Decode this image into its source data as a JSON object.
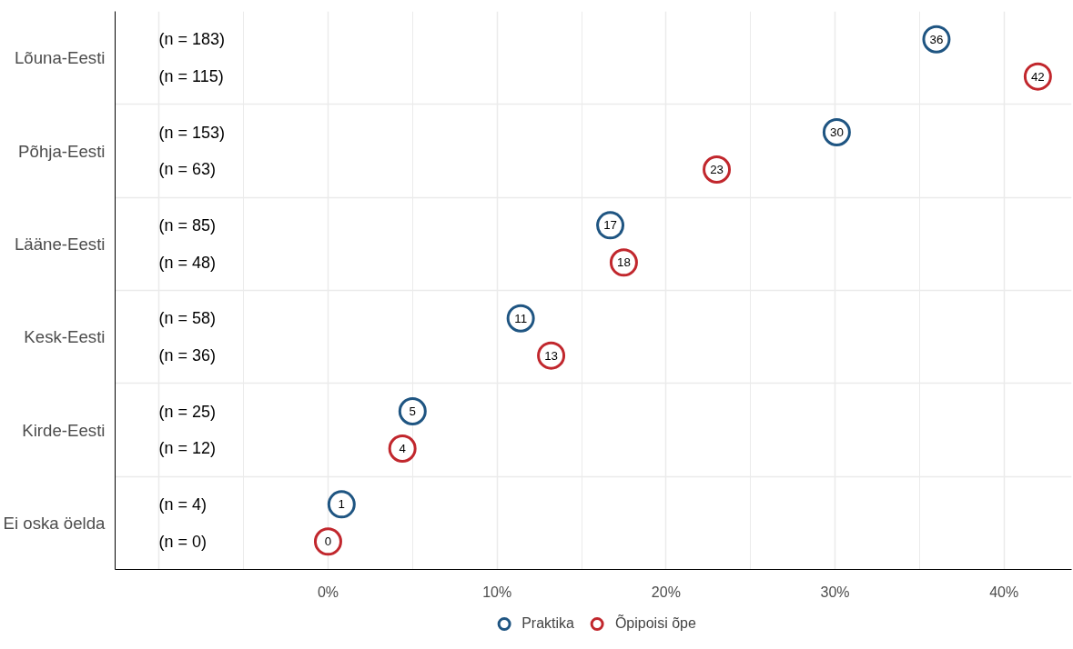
{
  "chart_data": {
    "type": "scatter",
    "categories": [
      "Lõuna-Eesti",
      "Põhja-Eesti",
      "Lääne-Eesti",
      "Kesk-Eesti",
      "Kirde-Eesti",
      "Ei oska öelda"
    ],
    "orientation": "horizontal",
    "marker": "circle",
    "grid": true,
    "legend": "bottom",
    "xlim": [
      -12.6,
      44
    ],
    "xticks": [
      {
        "value": -10,
        "label": null
      },
      {
        "value": 0,
        "label": "0%"
      },
      {
        "value": 10,
        "label": "10%"
      },
      {
        "value": 20,
        "label": "20%"
      },
      {
        "value": 30,
        "label": "30%"
      },
      {
        "value": 40,
        "label": "40%"
      }
    ],
    "series": [
      {
        "name": "Praktika",
        "color": "#1f5582",
        "values": [
          36.0,
          30.1,
          16.7,
          11.4,
          5.0,
          0.8
        ],
        "value_labels": [
          "36",
          "30",
          "17",
          "11",
          "5",
          "1"
        ]
      },
      {
        "name": "Õpipoisi õpe",
        "color": "#c1272d",
        "values": [
          42.0,
          23.0,
          17.5,
          13.2,
          4.4,
          0.0
        ],
        "value_labels": [
          "42",
          "23",
          "18",
          "13",
          "4",
          "0"
        ]
      }
    ],
    "annotations": [
      "(n = 183)",
      "(n = 115)",
      "(n = 153)",
      "(n = 63)",
      "(n = 85)",
      "(n = 48)",
      "(n = 58)",
      "(n = 36)",
      "(n = 25)",
      "(n = 12)",
      "(n = 4)",
      "(n = 0)"
    ]
  }
}
